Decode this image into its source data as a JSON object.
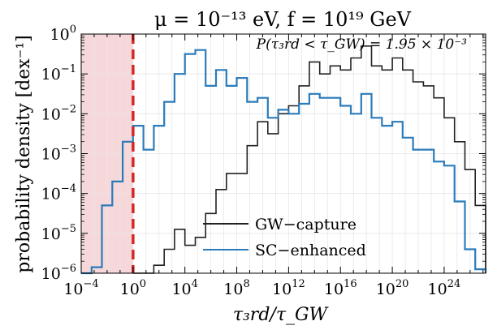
{
  "chart_data": {
    "type": "line",
    "title": "μ = 10⁻¹³ eV,  f = 10¹⁹ GeV",
    "xlabel": "τ₃rd/τ_GW",
    "ylabel": "probability density  [dex⁻¹]",
    "xscale": "log",
    "yscale": "log",
    "xlim": [
      -4,
      27.2
    ],
    "ylim": [
      -6,
      0
    ],
    "grid": true,
    "annotation": "P(τ₃rd < τ_GW) = 1.95 × 10⁻³",
    "annotation_color": "#2b7bba",
    "threshold_x": 0,
    "threshold_color": "#d62728",
    "shaded_region": [
      -4,
      0
    ],
    "shaded_color": "#f6d8da",
    "legend_position": "center-bottom",
    "xticks": [
      {
        "v": -4,
        "base": "10",
        "exp": "−4"
      },
      {
        "v": 0,
        "base": "10",
        "exp": "0"
      },
      {
        "v": 4,
        "base": "10",
        "exp": "4"
      },
      {
        "v": 8,
        "base": "10",
        "exp": "8"
      },
      {
        "v": 12,
        "base": "10",
        "exp": "12"
      },
      {
        "v": 16,
        "base": "10",
        "exp": "16"
      },
      {
        "v": 20,
        "base": "10",
        "exp": "20"
      },
      {
        "v": 24,
        "base": "10",
        "exp": "24"
      }
    ],
    "yticks": [
      {
        "v": 0,
        "base": "10",
        "exp": "0"
      },
      {
        "v": -1,
        "base": "10",
        "exp": "−1"
      },
      {
        "v": -2,
        "base": "10",
        "exp": "−2"
      },
      {
        "v": -3,
        "base": "10",
        "exp": "−3"
      },
      {
        "v": -4,
        "base": "10",
        "exp": "−4"
      },
      {
        "v": -5,
        "base": "10",
        "exp": "−5"
      },
      {
        "v": -6,
        "base": "10",
        "exp": "−6"
      }
    ],
    "bin_edges": [
      -4,
      -3.2,
      -2.4,
      -1.6,
      -0.8,
      0,
      0.8,
      1.6,
      2.4,
      3.2,
      4,
      4.8,
      5.6,
      6.4,
      7.2,
      8,
      8.8,
      9.6,
      10.4,
      11.2,
      12,
      12.8,
      13.6,
      14.4,
      15.2,
      16,
      16.8,
      17.6,
      18.4,
      19.2,
      20,
      20.8,
      21.6,
      22.4,
      23.2,
      24,
      24.8,
      25.6,
      26.4,
      27.2
    ],
    "series": [
      {
        "name": "GW−capture",
        "color": "#222222",
        "values": [
          null,
          null,
          null,
          null,
          null,
          -6.1,
          -6.1,
          -5.8,
          -5.4,
          -4.9,
          -5.3,
          -5.1,
          -4.5,
          -3.9,
          -3.5,
          -3.5,
          -2.8,
          -2.2,
          -2.5,
          -2.0,
          -1.8,
          -1.3,
          -0.7,
          -1.0,
          -0.8,
          -0.9,
          -0.6,
          -0.3,
          -0.8,
          -0.9,
          -0.6,
          -0.9,
          -1.2,
          -1.3,
          -1.6,
          -2.1,
          -2.7,
          -3.4,
          -4.3
        ]
      },
      {
        "name": "SC−enhanced",
        "color": "#2b7bba",
        "values": [
          -6.0,
          -5.85,
          -4.3,
          -3.7,
          -2.7,
          -2.3,
          -2.9,
          -2.3,
          -1.7,
          -1.0,
          -0.5,
          -0.4,
          -1.3,
          -0.9,
          -1.3,
          -1.1,
          -1.7,
          -1.6,
          -2.1,
          -1.9,
          -2.0,
          -1.75,
          -1.5,
          -1.6,
          -1.6,
          -1.8,
          -2.0,
          -1.5,
          -2.1,
          -2.3,
          -2.2,
          -2.6,
          -2.9,
          -2.9,
          -3.2,
          -3.3,
          -4.2,
          -5.4,
          -5.9
        ]
      }
    ]
  }
}
